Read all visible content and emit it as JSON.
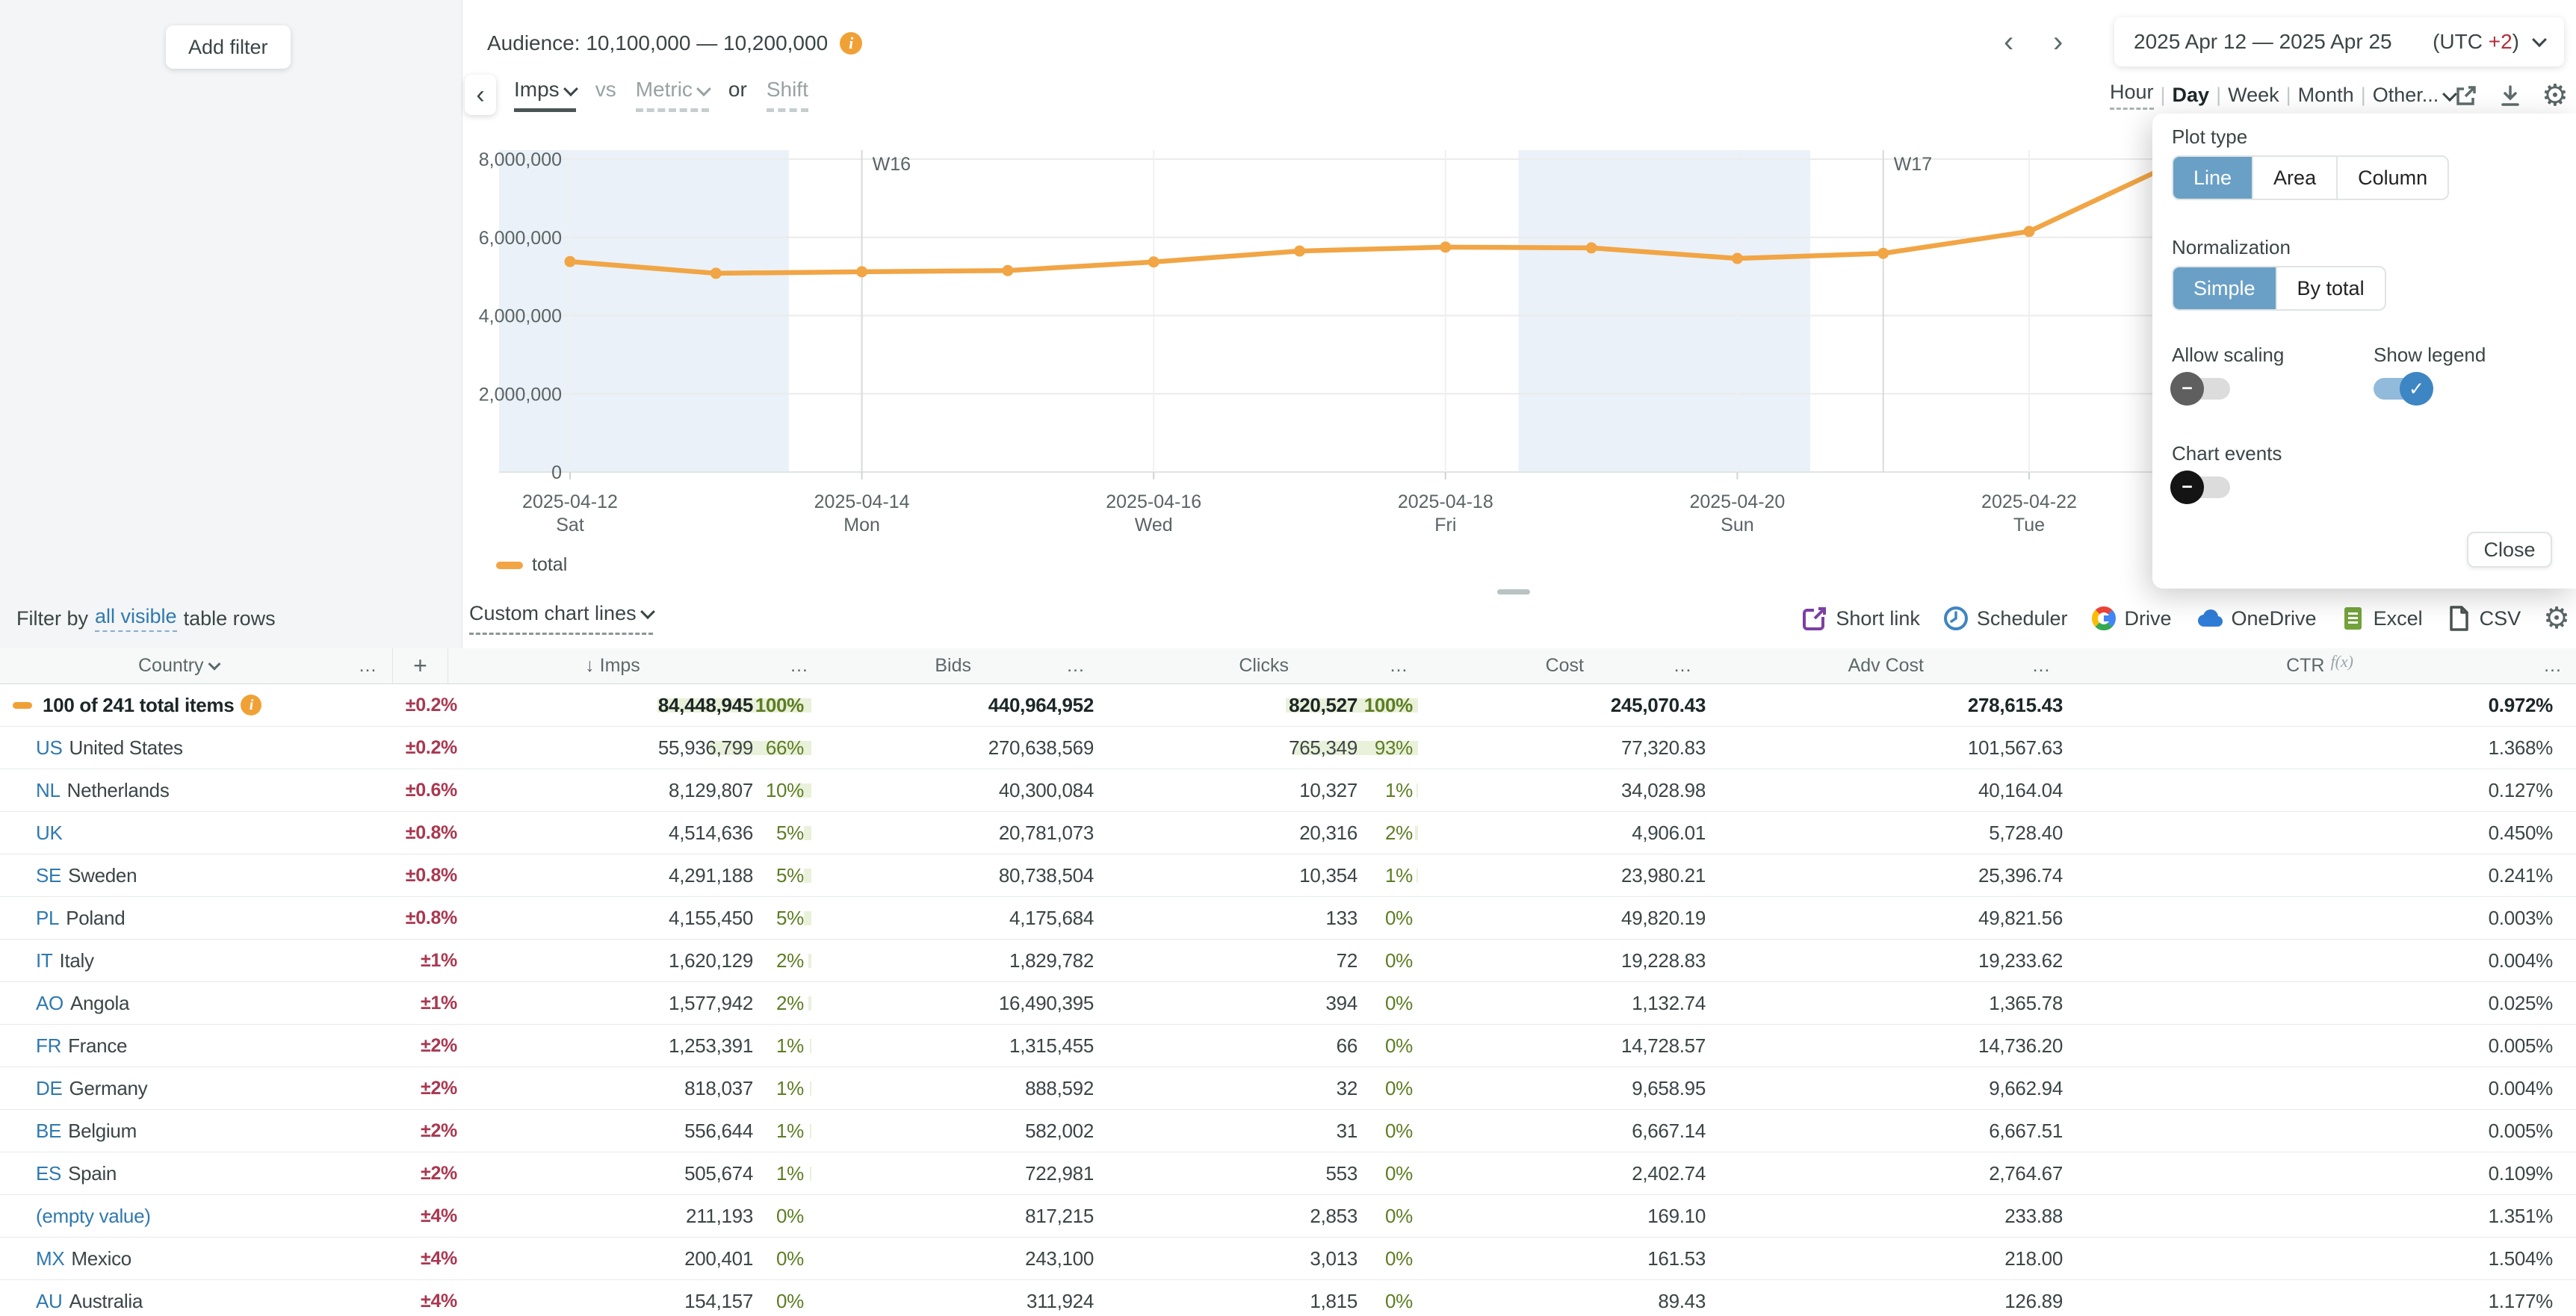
{
  "top": {
    "add_filter": "Add filter",
    "audience_label": "Audience: 10,100,000 — 10,200,000",
    "metric_nav": {
      "primary": "Imps",
      "vs": "vs",
      "metric": "Metric",
      "or": "or",
      "shift": "Shift"
    },
    "date_range": {
      "label": "2025 Apr 12 — 2025 Apr 25",
      "utc_prefix": "(UTC ",
      "utc_value": "+2",
      "utc_suffix": ")"
    },
    "granularity": {
      "options": [
        "Hour",
        "Day",
        "Week",
        "Month",
        "Other..."
      ],
      "selected": "Day"
    }
  },
  "settings": {
    "plot_type": {
      "label": "Plot type",
      "options": [
        "Line",
        "Area",
        "Column"
      ],
      "selected": "Line"
    },
    "normalization": {
      "label": "Normalization",
      "options": [
        "Simple",
        "By total"
      ],
      "selected": "Simple"
    },
    "allow_scaling": {
      "label": "Allow scaling",
      "enabled": false
    },
    "show_legend": {
      "label": "Show legend",
      "enabled": true
    },
    "chart_events": {
      "label": "Chart events",
      "enabled": false
    },
    "close": "Close"
  },
  "chart_data": {
    "type": "line",
    "title": "Audience: 10,100,000 — 10,200,000",
    "x": [
      "2025-04-12",
      "2025-04-13",
      "2025-04-14",
      "2025-04-15",
      "2025-04-16",
      "2025-04-17",
      "2025-04-18",
      "2025-04-19",
      "2025-04-20",
      "2025-04-21",
      "2025-04-22",
      "2025-04-23"
    ],
    "series": [
      {
        "name": "total",
        "color": "#f1a545",
        "values": [
          5380000,
          5080000,
          5120000,
          5150000,
          5370000,
          5650000,
          5750000,
          5730000,
          5460000,
          5590000,
          6150000,
          7900000
        ]
      }
    ],
    "ylim": [
      0,
      8000000
    ],
    "y_ticks": [
      0,
      2000000,
      4000000,
      6000000,
      8000000
    ],
    "y_tick_labels": [
      "0",
      "2,000,000",
      "4,000,000",
      "6,000,000",
      "8,000,000"
    ],
    "x_ticks": [
      {
        "day_index": 0,
        "date": "2025-04-12",
        "dow": "Sat"
      },
      {
        "day_index": 2,
        "date": "2025-04-14",
        "dow": "Mon"
      },
      {
        "day_index": 4,
        "date": "2025-04-16",
        "dow": "Wed"
      },
      {
        "day_index": 6,
        "date": "2025-04-18",
        "dow": "Fri"
      },
      {
        "day_index": 8,
        "date": "2025-04-20",
        "dow": "Sun"
      },
      {
        "day_index": 10,
        "date": "2025-04-22",
        "dow": "Tue"
      }
    ],
    "week_markers": [
      {
        "label": "W16",
        "day_index": 2
      },
      {
        "label": "W17",
        "day_index": 9
      }
    ],
    "weekend_bands": [
      [
        -0.5,
        1.5
      ],
      [
        6.5,
        8.5
      ]
    ],
    "grid": true,
    "legend": {
      "position": "bottom-left",
      "entries": [
        "total"
      ]
    }
  },
  "filter_bar": {
    "prefix": "Filter by",
    "link": "all visible",
    "suffix": "table rows",
    "custom_chart_lines": "Custom chart lines"
  },
  "export_bar": {
    "short_link": "Short link",
    "scheduler": "Scheduler",
    "drive": "Drive",
    "onedrive": "OneDrive",
    "excel": "Excel",
    "csv": "CSV"
  },
  "table": {
    "headers": {
      "country": "Country",
      "plus": "+",
      "imps": "↓ Imps",
      "bids": "Bids",
      "clicks": "Clicks",
      "cost": "Cost",
      "adv_cost": "Adv Cost",
      "ctr": "CTR",
      "fx": "f(x)",
      "ellipsis": "…"
    },
    "rows": [
      {
        "code": "",
        "name": "100 of 241 total items",
        "total": true,
        "pm": "±0.2%",
        "imps": "84,448,945",
        "imps_pct": "100%",
        "bids": "440,964,952",
        "clicks": "820,527",
        "clicks_pct": "100%",
        "cost": "245,070.43",
        "adv_cost": "278,615.43",
        "ctr": "0.972%"
      },
      {
        "code": "US",
        "name": "United States",
        "pm": "±0.2%",
        "imps": "55,936,799",
        "imps_pct": "66%",
        "bids": "270,638,569",
        "clicks": "765,349",
        "clicks_pct": "93%",
        "cost": "77,320.83",
        "adv_cost": "101,567.63",
        "ctr": "1.368%"
      },
      {
        "code": "NL",
        "name": "Netherlands",
        "pm": "±0.6%",
        "imps": "8,129,807",
        "imps_pct": "10%",
        "bids": "40,300,084",
        "clicks": "10,327",
        "clicks_pct": "1%",
        "cost": "34,028.98",
        "adv_cost": "40,164.04",
        "ctr": "0.127%"
      },
      {
        "code": "UK",
        "name": "",
        "pm": "±0.8%",
        "imps": "4,514,636",
        "imps_pct": "5%",
        "bids": "20,781,073",
        "clicks": "20,316",
        "clicks_pct": "2%",
        "cost": "4,906.01",
        "adv_cost": "5,728.40",
        "ctr": "0.450%"
      },
      {
        "code": "SE",
        "name": "Sweden",
        "pm": "±0.8%",
        "imps": "4,291,188",
        "imps_pct": "5%",
        "bids": "80,738,504",
        "clicks": "10,354",
        "clicks_pct": "1%",
        "cost": "23,980.21",
        "adv_cost": "25,396.74",
        "ctr": "0.241%"
      },
      {
        "code": "PL",
        "name": "Poland",
        "pm": "±0.8%",
        "imps": "4,155,450",
        "imps_pct": "5%",
        "bids": "4,175,684",
        "clicks": "133",
        "clicks_pct": "0%",
        "cost": "49,820.19",
        "adv_cost": "49,821.56",
        "ctr": "0.003%"
      },
      {
        "code": "IT",
        "name": "Italy",
        "pm": "±1%",
        "imps": "1,620,129",
        "imps_pct": "2%",
        "bids": "1,829,782",
        "clicks": "72",
        "clicks_pct": "0%",
        "cost": "19,228.83",
        "adv_cost": "19,233.62",
        "ctr": "0.004%"
      },
      {
        "code": "AO",
        "name": "Angola",
        "pm": "±1%",
        "imps": "1,577,942",
        "imps_pct": "2%",
        "bids": "16,490,395",
        "clicks": "394",
        "clicks_pct": "0%",
        "cost": "1,132.74",
        "adv_cost": "1,365.78",
        "ctr": "0.025%"
      },
      {
        "code": "FR",
        "name": "France",
        "pm": "±2%",
        "imps": "1,253,391",
        "imps_pct": "1%",
        "bids": "1,315,455",
        "clicks": "66",
        "clicks_pct": "0%",
        "cost": "14,728.57",
        "adv_cost": "14,736.20",
        "ctr": "0.005%"
      },
      {
        "code": "DE",
        "name": "Germany",
        "pm": "±2%",
        "imps": "818,037",
        "imps_pct": "1%",
        "bids": "888,592",
        "clicks": "32",
        "clicks_pct": "0%",
        "cost": "9,658.95",
        "adv_cost": "9,662.94",
        "ctr": "0.004%"
      },
      {
        "code": "BE",
        "name": "Belgium",
        "pm": "±2%",
        "imps": "556,644",
        "imps_pct": "1%",
        "bids": "582,002",
        "clicks": "31",
        "clicks_pct": "0%",
        "cost": "6,667.14",
        "adv_cost": "6,667.51",
        "ctr": "0.005%"
      },
      {
        "code": "ES",
        "name": "Spain",
        "pm": "±2%",
        "imps": "505,674",
        "imps_pct": "1%",
        "bids": "722,981",
        "clicks": "553",
        "clicks_pct": "0%",
        "cost": "2,402.74",
        "adv_cost": "2,764.67",
        "ctr": "0.109%"
      },
      {
        "code": "",
        "name": "(empty value)",
        "link": true,
        "pm": "±4%",
        "imps": "211,193",
        "imps_pct": "0%",
        "bids": "817,215",
        "clicks": "2,853",
        "clicks_pct": "0%",
        "cost": "169.10",
        "adv_cost": "233.88",
        "ctr": "1.351%"
      },
      {
        "code": "MX",
        "name": "Mexico",
        "pm": "±4%",
        "imps": "200,401",
        "imps_pct": "0%",
        "bids": "243,100",
        "clicks": "3,013",
        "clicks_pct": "0%",
        "cost": "161.53",
        "adv_cost": "218.00",
        "ctr": "1.504%"
      },
      {
        "code": "AU",
        "name": "Australia",
        "pm": "±4%",
        "imps": "154,157",
        "imps_pct": "0%",
        "bids": "311,924",
        "clicks": "1,815",
        "clicks_pct": "0%",
        "cost": "89.43",
        "adv_cost": "126.89",
        "ctr": "1.177%"
      }
    ]
  },
  "colors": {
    "accent_blue": "#6aa0c6",
    "line_orange": "#f1a545",
    "negative_red": "#a93850",
    "positive_green": "#5c7d22",
    "green_highlight": "#e9f1da",
    "link_blue": "#2f79ae"
  }
}
